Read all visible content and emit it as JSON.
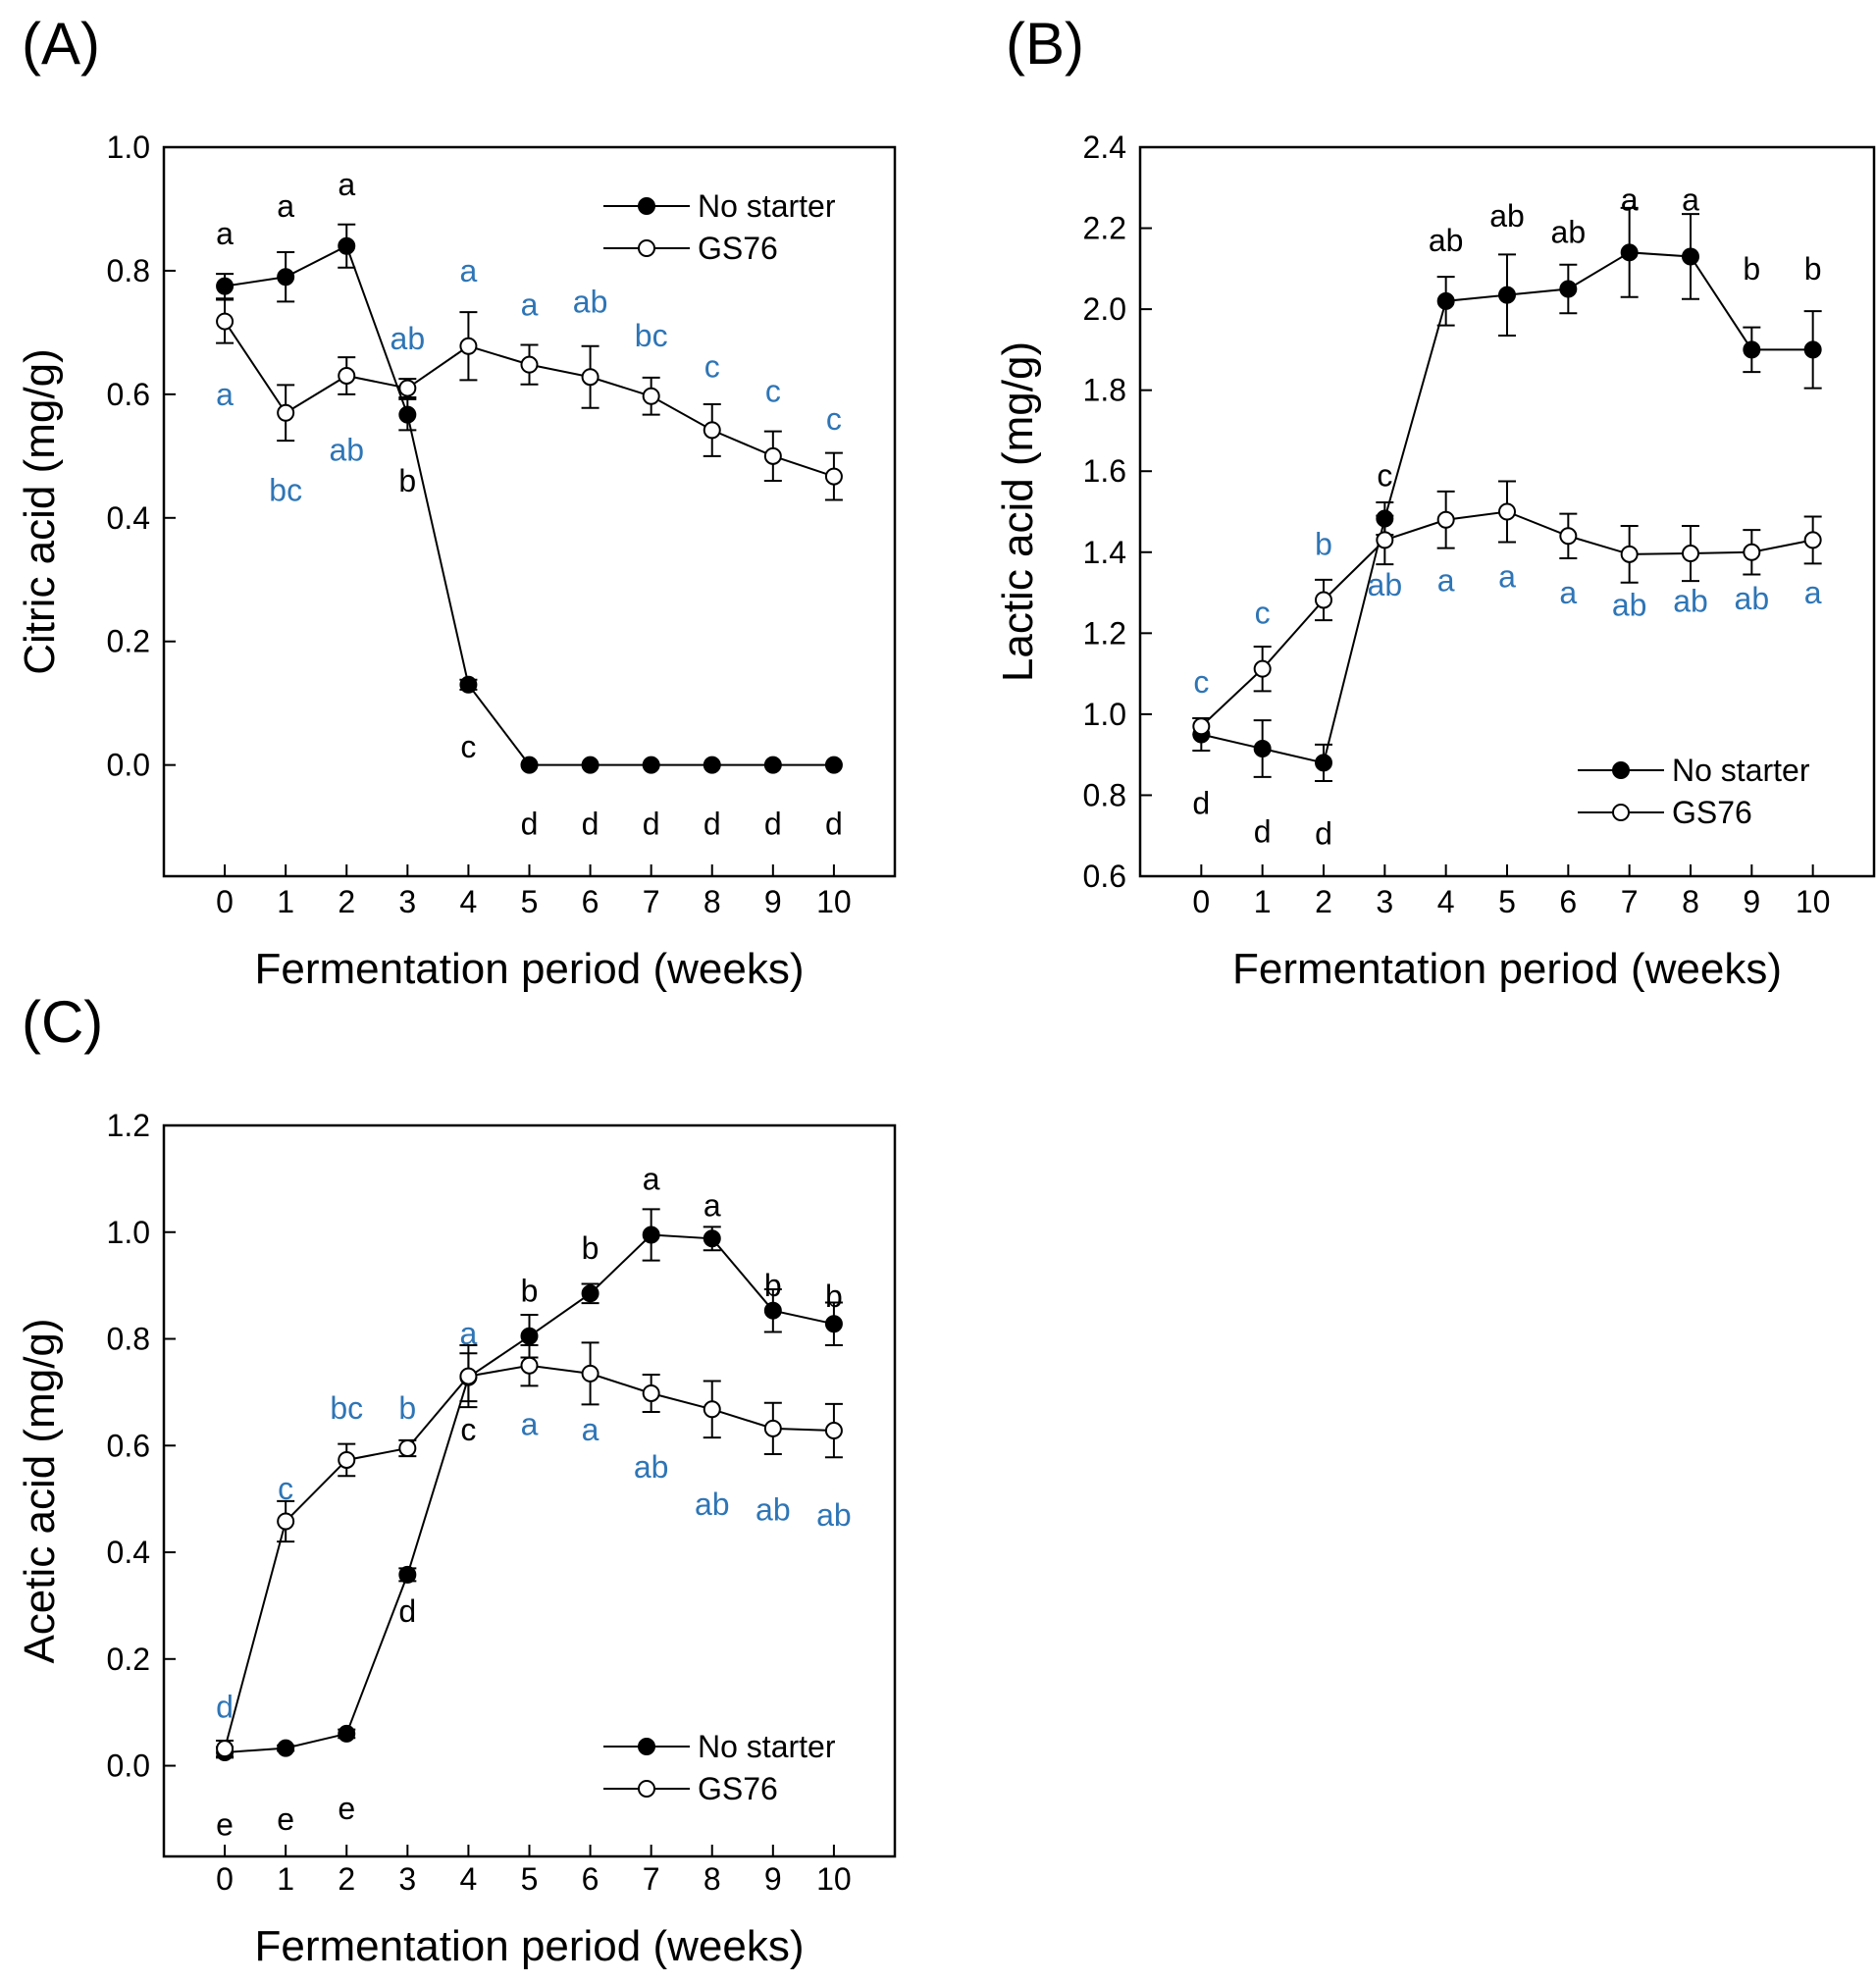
{
  "figure": {
    "panel_count": 3
  },
  "colors": {
    "axis": "#000000",
    "no_starter_letters": "#000000",
    "gs76_letters": "#2e75b6"
  },
  "chart_data": [
    {
      "panel": "(A)",
      "type": "line",
      "ylabel": "Citric acid (mg/g)",
      "xlabel": "Fermentation period (weeks)",
      "xlim": [
        -1,
        11
      ],
      "ylim": [
        -0.18,
        1.0
      ],
      "x_ticks": [
        "0",
        "1",
        "2",
        "3",
        "4",
        "5",
        "6",
        "7",
        "8",
        "9",
        "10"
      ],
      "y_ticks": [
        "0.0",
        "0.2",
        "0.4",
        "0.6",
        "0.8",
        "1.0"
      ],
      "legend": [
        "No starter",
        "GS76"
      ],
      "legend_position": "top-right",
      "x": [
        0,
        1,
        2,
        3,
        4,
        5,
        6,
        7,
        8,
        9,
        10
      ],
      "series": [
        {
          "name": "No starter",
          "marker": "filled-circle",
          "values": [
            0.775,
            0.79,
            0.84,
            0.567,
            0.13,
            0.0,
            0.0,
            0.0,
            0.0,
            0.0,
            0.0
          ],
          "errors": [
            0.02,
            0.04,
            0.035,
            0.025,
            0.008,
            0.0,
            0.0,
            0.0,
            0.0,
            0.0,
            0.0
          ],
          "letters": [
            "a",
            "a",
            "a",
            "b",
            "c",
            "d",
            "d",
            "d",
            "d",
            "d",
            "d"
          ],
          "letter_values": [
            0.86,
            0.905,
            0.94,
            0.46,
            0.03,
            -0.095,
            -0.095,
            -0.095,
            -0.095,
            -0.095,
            -0.095
          ]
        },
        {
          "name": "GS76",
          "marker": "open-circle",
          "values": [
            0.718,
            0.57,
            0.63,
            0.61,
            0.678,
            0.648,
            0.628,
            0.597,
            0.542,
            0.5,
            0.467
          ],
          "errors": [
            0.035,
            0.045,
            0.03,
            0.015,
            0.055,
            0.032,
            0.05,
            0.03,
            0.042,
            0.04,
            0.038
          ],
          "letters": [
            "a",
            "bc",
            "ab",
            "ab",
            "a",
            "a",
            "ab",
            "bc",
            "c",
            "c",
            "c"
          ],
          "letter_values": [
            0.6,
            0.445,
            0.51,
            0.69,
            0.8,
            0.745,
            0.75,
            0.695,
            0.645,
            0.605,
            0.56
          ]
        }
      ]
    },
    {
      "panel": "(B)",
      "type": "line",
      "ylabel": "Lactic acid (mg/g)",
      "xlabel": "Fermentation period (weeks)",
      "xlim": [
        -1,
        11
      ],
      "ylim": [
        0.6,
        2.4
      ],
      "x_ticks": [
        "0",
        "1",
        "2",
        "3",
        "4",
        "5",
        "6",
        "7",
        "8",
        "9",
        "10"
      ],
      "y_ticks": [
        "0.6",
        "0.8",
        "1.0",
        "1.2",
        "1.4",
        "1.6",
        "1.8",
        "2.0",
        "2.2",
        "2.4"
      ],
      "legend": [
        "No starter",
        "GS76"
      ],
      "legend_position": "bottom-right",
      "x": [
        0,
        1,
        2,
        3,
        4,
        5,
        6,
        7,
        8,
        9,
        10
      ],
      "series": [
        {
          "name": "No starter",
          "marker": "filled-circle",
          "values": [
            0.95,
            0.915,
            0.88,
            1.483,
            2.02,
            2.035,
            2.05,
            2.14,
            2.13,
            1.9,
            1.9
          ],
          "errors": [
            0.04,
            0.07,
            0.045,
            0.04,
            0.06,
            0.1,
            0.06,
            0.11,
            0.105,
            0.055,
            0.095
          ],
          "letters": [
            "d",
            "d",
            "d",
            "c",
            "ab",
            "ab",
            "ab",
            "a",
            "a",
            "b",
            "b"
          ],
          "letter_values": [
            0.78,
            0.71,
            0.705,
            1.59,
            2.17,
            2.23,
            2.19,
            2.27,
            2.27,
            2.1,
            2.1
          ]
        },
        {
          "name": "GS76",
          "marker": "open-circle",
          "values": [
            0.97,
            1.112,
            1.282,
            1.43,
            1.48,
            1.5,
            1.44,
            1.395,
            1.397,
            1.4,
            1.43
          ],
          "errors": [
            0.02,
            0.055,
            0.05,
            0.06,
            0.07,
            0.075,
            0.055,
            0.07,
            0.068,
            0.055,
            0.058
          ],
          "letters": [
            "c",
            "c",
            "b",
            "ab",
            "a",
            "a",
            "a",
            "ab",
            "ab",
            "ab",
            "a"
          ],
          "letter_values": [
            1.08,
            1.25,
            1.42,
            1.32,
            1.33,
            1.34,
            1.3,
            1.27,
            1.28,
            1.285,
            1.3
          ]
        }
      ]
    },
    {
      "panel": "(C)",
      "type": "line",
      "ylabel": "Acetic acid (mg/g)",
      "xlabel": "Fermentation period (weeks)",
      "xlim": [
        -1,
        11
      ],
      "ylim": [
        -0.17,
        1.2
      ],
      "x_ticks": [
        "0",
        "1",
        "2",
        "3",
        "4",
        "5",
        "6",
        "7",
        "8",
        "9",
        "10"
      ],
      "y_ticks": [
        "0.0",
        "0.2",
        "0.4",
        "0.6",
        "0.8",
        "1.0",
        "1.2"
      ],
      "legend": [
        "No starter",
        "GS76"
      ],
      "legend_position": "bottom-right",
      "x": [
        0,
        1,
        2,
        3,
        4,
        5,
        6,
        7,
        8,
        9,
        10
      ],
      "series": [
        {
          "name": "No starter",
          "marker": "filled-circle",
          "values": [
            0.025,
            0.033,
            0.06,
            0.358,
            0.728,
            0.805,
            0.885,
            0.995,
            0.988,
            0.853,
            0.828
          ],
          "errors": [
            0.01,
            0.005,
            0.008,
            0.012,
            0.045,
            0.04,
            0.018,
            0.048,
            0.022,
            0.04,
            0.04
          ],
          "letters": [
            "e",
            "e",
            "e",
            "d",
            "c",
            "b",
            "b",
            "a",
            "a",
            "b",
            "b"
          ],
          "letter_values": [
            -0.11,
            -0.1,
            -0.08,
            0.29,
            0.63,
            0.89,
            0.97,
            1.1,
            1.05,
            0.9,
            0.88
          ]
        },
        {
          "name": "GS76",
          "marker": "open-circle",
          "values": [
            0.032,
            0.458,
            0.573,
            0.595,
            0.73,
            0.75,
            0.735,
            0.698,
            0.668,
            0.632,
            0.628
          ],
          "errors": [
            0.015,
            0.038,
            0.03,
            0.015,
            0.058,
            0.038,
            0.058,
            0.035,
            0.053,
            0.048,
            0.05
          ],
          "letters": [
            "d",
            "c",
            "bc",
            "b",
            "a",
            "a",
            "a",
            "ab",
            "ab",
            "ab",
            "ab"
          ],
          "letter_values": [
            0.11,
            0.52,
            0.67,
            0.67,
            0.81,
            0.64,
            0.63,
            0.56,
            0.49,
            0.48,
            0.47
          ]
        }
      ]
    }
  ]
}
